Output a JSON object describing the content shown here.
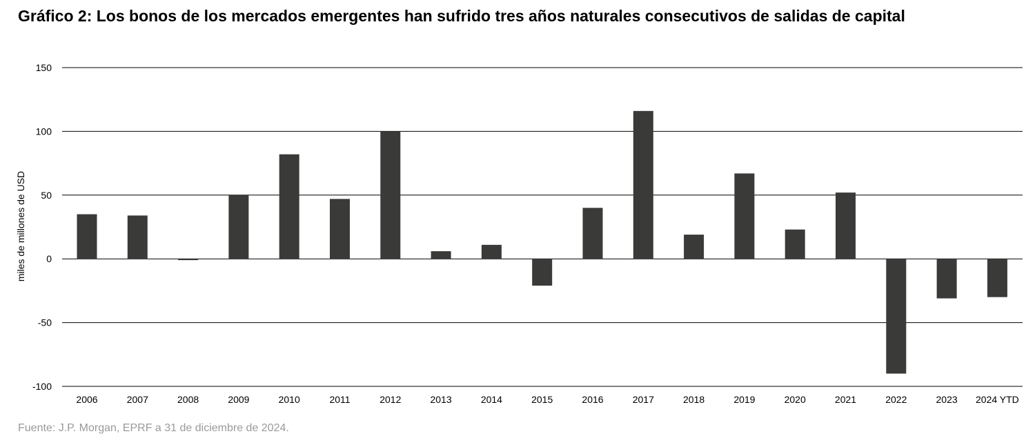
{
  "title": "Gráfico 2: Los bonos de los mercados emergentes han sufrido tres años naturales consecutivos de salidas de capital",
  "source": "Fuente: J.P. Morgan, EPRF a 31 de diciembre de 2024.",
  "colors": {
    "bar": "#3a3b39",
    "gridline": "#000000",
    "source_text": "#9a9a9a"
  },
  "chart_data": {
    "type": "bar",
    "title": "Gráfico 2: Los bonos de los mercados emergentes han sufrido tres años naturales consecutivos de salidas de capital",
    "xlabel": "",
    "ylabel": "miles de millones de USD",
    "ylim": [
      -100,
      150
    ],
    "yticks": [
      150,
      100,
      50,
      0,
      -50,
      -100
    ],
    "grid": true,
    "legend": "none",
    "categories": [
      "2006",
      "2007",
      "2008",
      "2009",
      "2010",
      "2011",
      "2012",
      "2013",
      "2014",
      "2015",
      "2016",
      "2017",
      "2018",
      "2019",
      "2020",
      "2021",
      "2022",
      "2023",
      "2024 YTD"
    ],
    "values": [
      35,
      34,
      -1,
      50,
      82,
      47,
      100,
      6,
      11,
      -21,
      40,
      116,
      19,
      67,
      23,
      52,
      -90,
      -31,
      -30
    ]
  }
}
